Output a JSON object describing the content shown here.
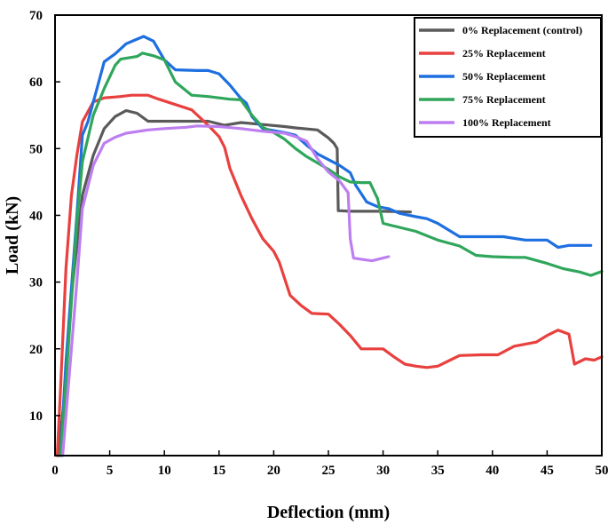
{
  "chart_data": {
    "type": "line",
    "title": "",
    "xlabel": "Deflection (mm)",
    "ylabel": "Load (kN)",
    "xlim": [
      0,
      50
    ],
    "ylim": [
      4,
      70
    ],
    "xticks": [
      0,
      5,
      10,
      15,
      20,
      25,
      30,
      35,
      40,
      45,
      50
    ],
    "yticks": [
      10,
      20,
      30,
      40,
      50,
      60,
      70
    ],
    "legend_position": "top-right",
    "series": [
      {
        "name": "0% Replacement (control)",
        "color": "#5a5a5a",
        "points": [
          [
            0.3,
            4
          ],
          [
            0.8,
            12
          ],
          [
            1.5,
            28
          ],
          [
            2.5,
            43
          ],
          [
            3.5,
            49
          ],
          [
            4.5,
            53
          ],
          [
            5.5,
            54.8
          ],
          [
            6.5,
            55.7
          ],
          [
            7.5,
            55.3
          ],
          [
            8.5,
            54.1
          ],
          [
            10,
            54.1
          ],
          [
            12,
            54.1
          ],
          [
            14,
            54.1
          ],
          [
            15.5,
            53.5
          ],
          [
            17,
            53.9
          ],
          [
            19,
            53.6
          ],
          [
            21,
            53.3
          ],
          [
            22,
            53.1
          ],
          [
            24,
            52.8
          ],
          [
            25,
            51.6
          ],
          [
            25.5,
            50.8
          ],
          [
            25.8,
            50
          ],
          [
            25.9,
            40.7
          ],
          [
            27,
            40.6
          ],
          [
            30,
            40.6
          ],
          [
            32.5,
            40.5
          ]
        ]
      },
      {
        "name": "25% Replacement",
        "color": "#e8403e",
        "points": [
          [
            0.2,
            4
          ],
          [
            0.5,
            14
          ],
          [
            1,
            32
          ],
          [
            1.5,
            43
          ],
          [
            2,
            49
          ],
          [
            2.5,
            54
          ],
          [
            3.5,
            57
          ],
          [
            4.5,
            57.6
          ],
          [
            6,
            57.8
          ],
          [
            7,
            58
          ],
          [
            8.5,
            58
          ],
          [
            9.5,
            57.4
          ],
          [
            11,
            56.6
          ],
          [
            12.5,
            55.8
          ],
          [
            14,
            53.5
          ],
          [
            15,
            51.8
          ],
          [
            15.5,
            50.2
          ],
          [
            16,
            47
          ],
          [
            17,
            43
          ],
          [
            18,
            39.5
          ],
          [
            19,
            36.5
          ],
          [
            20,
            34.6
          ],
          [
            20.5,
            33
          ],
          [
            21.5,
            28
          ],
          [
            22.5,
            26.5
          ],
          [
            23.5,
            25.3
          ],
          [
            25,
            25.2
          ],
          [
            26,
            23.7
          ],
          [
            27,
            22
          ],
          [
            28,
            20
          ],
          [
            29.5,
            20
          ],
          [
            30,
            20
          ],
          [
            31,
            18.8
          ],
          [
            32,
            17.7
          ],
          [
            33,
            17.4
          ],
          [
            34,
            17.2
          ],
          [
            35,
            17.4
          ],
          [
            37,
            19
          ],
          [
            39,
            19.1
          ],
          [
            40.5,
            19.1
          ],
          [
            42,
            20.4
          ],
          [
            44,
            21
          ],
          [
            45,
            22
          ],
          [
            46,
            22.8
          ],
          [
            47,
            22.2
          ],
          [
            47.5,
            17.7
          ],
          [
            48.5,
            18.5
          ],
          [
            49.3,
            18.3
          ],
          [
            50,
            18.8
          ]
        ]
      },
      {
        "name": "50% Replacement",
        "color": "#1e6fe0",
        "points": [
          [
            0.5,
            4
          ],
          [
            1,
            18
          ],
          [
            2,
            40
          ],
          [
            2.5,
            52
          ],
          [
            3,
            54
          ],
          [
            4,
            60
          ],
          [
            4.5,
            63
          ],
          [
            5.5,
            64.2
          ],
          [
            6.5,
            65.7
          ],
          [
            7.2,
            66.2
          ],
          [
            8.1,
            66.8
          ],
          [
            9,
            66.1
          ],
          [
            10,
            63.3
          ],
          [
            11,
            61.8
          ],
          [
            13,
            61.7
          ],
          [
            14,
            61.7
          ],
          [
            15,
            61.2
          ],
          [
            16,
            59.5
          ],
          [
            17,
            57.5
          ],
          [
            17.5,
            56.8
          ],
          [
            18,
            54.8
          ],
          [
            19,
            53
          ],
          [
            21,
            52.4
          ],
          [
            22,
            52
          ],
          [
            23,
            50.5
          ],
          [
            24,
            49.2
          ],
          [
            26,
            47.5
          ],
          [
            27,
            46.4
          ],
          [
            27.5,
            44.5
          ],
          [
            28.5,
            42
          ],
          [
            29.5,
            41.3
          ],
          [
            30.5,
            41
          ],
          [
            31.5,
            40.3
          ],
          [
            33,
            39.8
          ],
          [
            34,
            39.5
          ],
          [
            35,
            38.8
          ],
          [
            37,
            36.8
          ],
          [
            39,
            36.8
          ],
          [
            41,
            36.8
          ],
          [
            43,
            36.3
          ],
          [
            45,
            36.3
          ],
          [
            46,
            35.2
          ],
          [
            47,
            35.5
          ],
          [
            48,
            35.5
          ],
          [
            49,
            35.5
          ]
        ]
      },
      {
        "name": "75% Replacement",
        "color": "#2fa65b",
        "points": [
          [
            0.5,
            4
          ],
          [
            1,
            15
          ],
          [
            2,
            39
          ],
          [
            2.5,
            48
          ],
          [
            3.5,
            55
          ],
          [
            4.5,
            59
          ],
          [
            5.5,
            62.5
          ],
          [
            6,
            63.4
          ],
          [
            7.5,
            63.8
          ],
          [
            8,
            64.3
          ],
          [
            9,
            63.9
          ],
          [
            10,
            63.3
          ],
          [
            11,
            60
          ],
          [
            12.5,
            58
          ],
          [
            14,
            57.8
          ],
          [
            15,
            57.6
          ],
          [
            16,
            57.4
          ],
          [
            17,
            57.3
          ],
          [
            18,
            55
          ],
          [
            19,
            53.2
          ],
          [
            20,
            52.4
          ],
          [
            21,
            51.4
          ],
          [
            22,
            50
          ],
          [
            23,
            48.8
          ],
          [
            25,
            46.9
          ],
          [
            26,
            45.8
          ],
          [
            27,
            45
          ],
          [
            28,
            44.9
          ],
          [
            28.8,
            44.9
          ],
          [
            29.5,
            42.5
          ],
          [
            30,
            38.8
          ],
          [
            32,
            38
          ],
          [
            33,
            37.6
          ],
          [
            35,
            36.3
          ],
          [
            37,
            35.4
          ],
          [
            38.5,
            34
          ],
          [
            40,
            33.8
          ],
          [
            42,
            33.7
          ],
          [
            43,
            33.7
          ],
          [
            45,
            32.8
          ],
          [
            46.5,
            32
          ],
          [
            48,
            31.5
          ],
          [
            49,
            31
          ],
          [
            50,
            31.6
          ]
        ]
      },
      {
        "name": "100% Replacement",
        "color": "#bd7ef0",
        "points": [
          [
            0.7,
            4
          ],
          [
            1,
            10
          ],
          [
            2,
            30
          ],
          [
            2.5,
            41
          ],
          [
            3.5,
            47.5
          ],
          [
            4.5,
            50.8
          ],
          [
            5.5,
            51.7
          ],
          [
            6.5,
            52.3
          ],
          [
            8.5,
            52.8
          ],
          [
            10,
            53
          ],
          [
            12,
            53.2
          ],
          [
            13,
            53.4
          ],
          [
            15,
            53.3
          ],
          [
            17,
            53
          ],
          [
            19,
            52.6
          ],
          [
            21,
            52.3
          ],
          [
            22,
            51.8
          ],
          [
            23,
            51.1
          ],
          [
            24,
            48.5
          ],
          [
            25,
            46.5
          ],
          [
            26,
            45.2
          ],
          [
            26.8,
            43.4
          ],
          [
            27,
            36.5
          ],
          [
            27.3,
            33.6
          ],
          [
            28.5,
            33.3
          ],
          [
            29,
            33.2
          ],
          [
            30.5,
            33.8
          ]
        ]
      }
    ]
  }
}
